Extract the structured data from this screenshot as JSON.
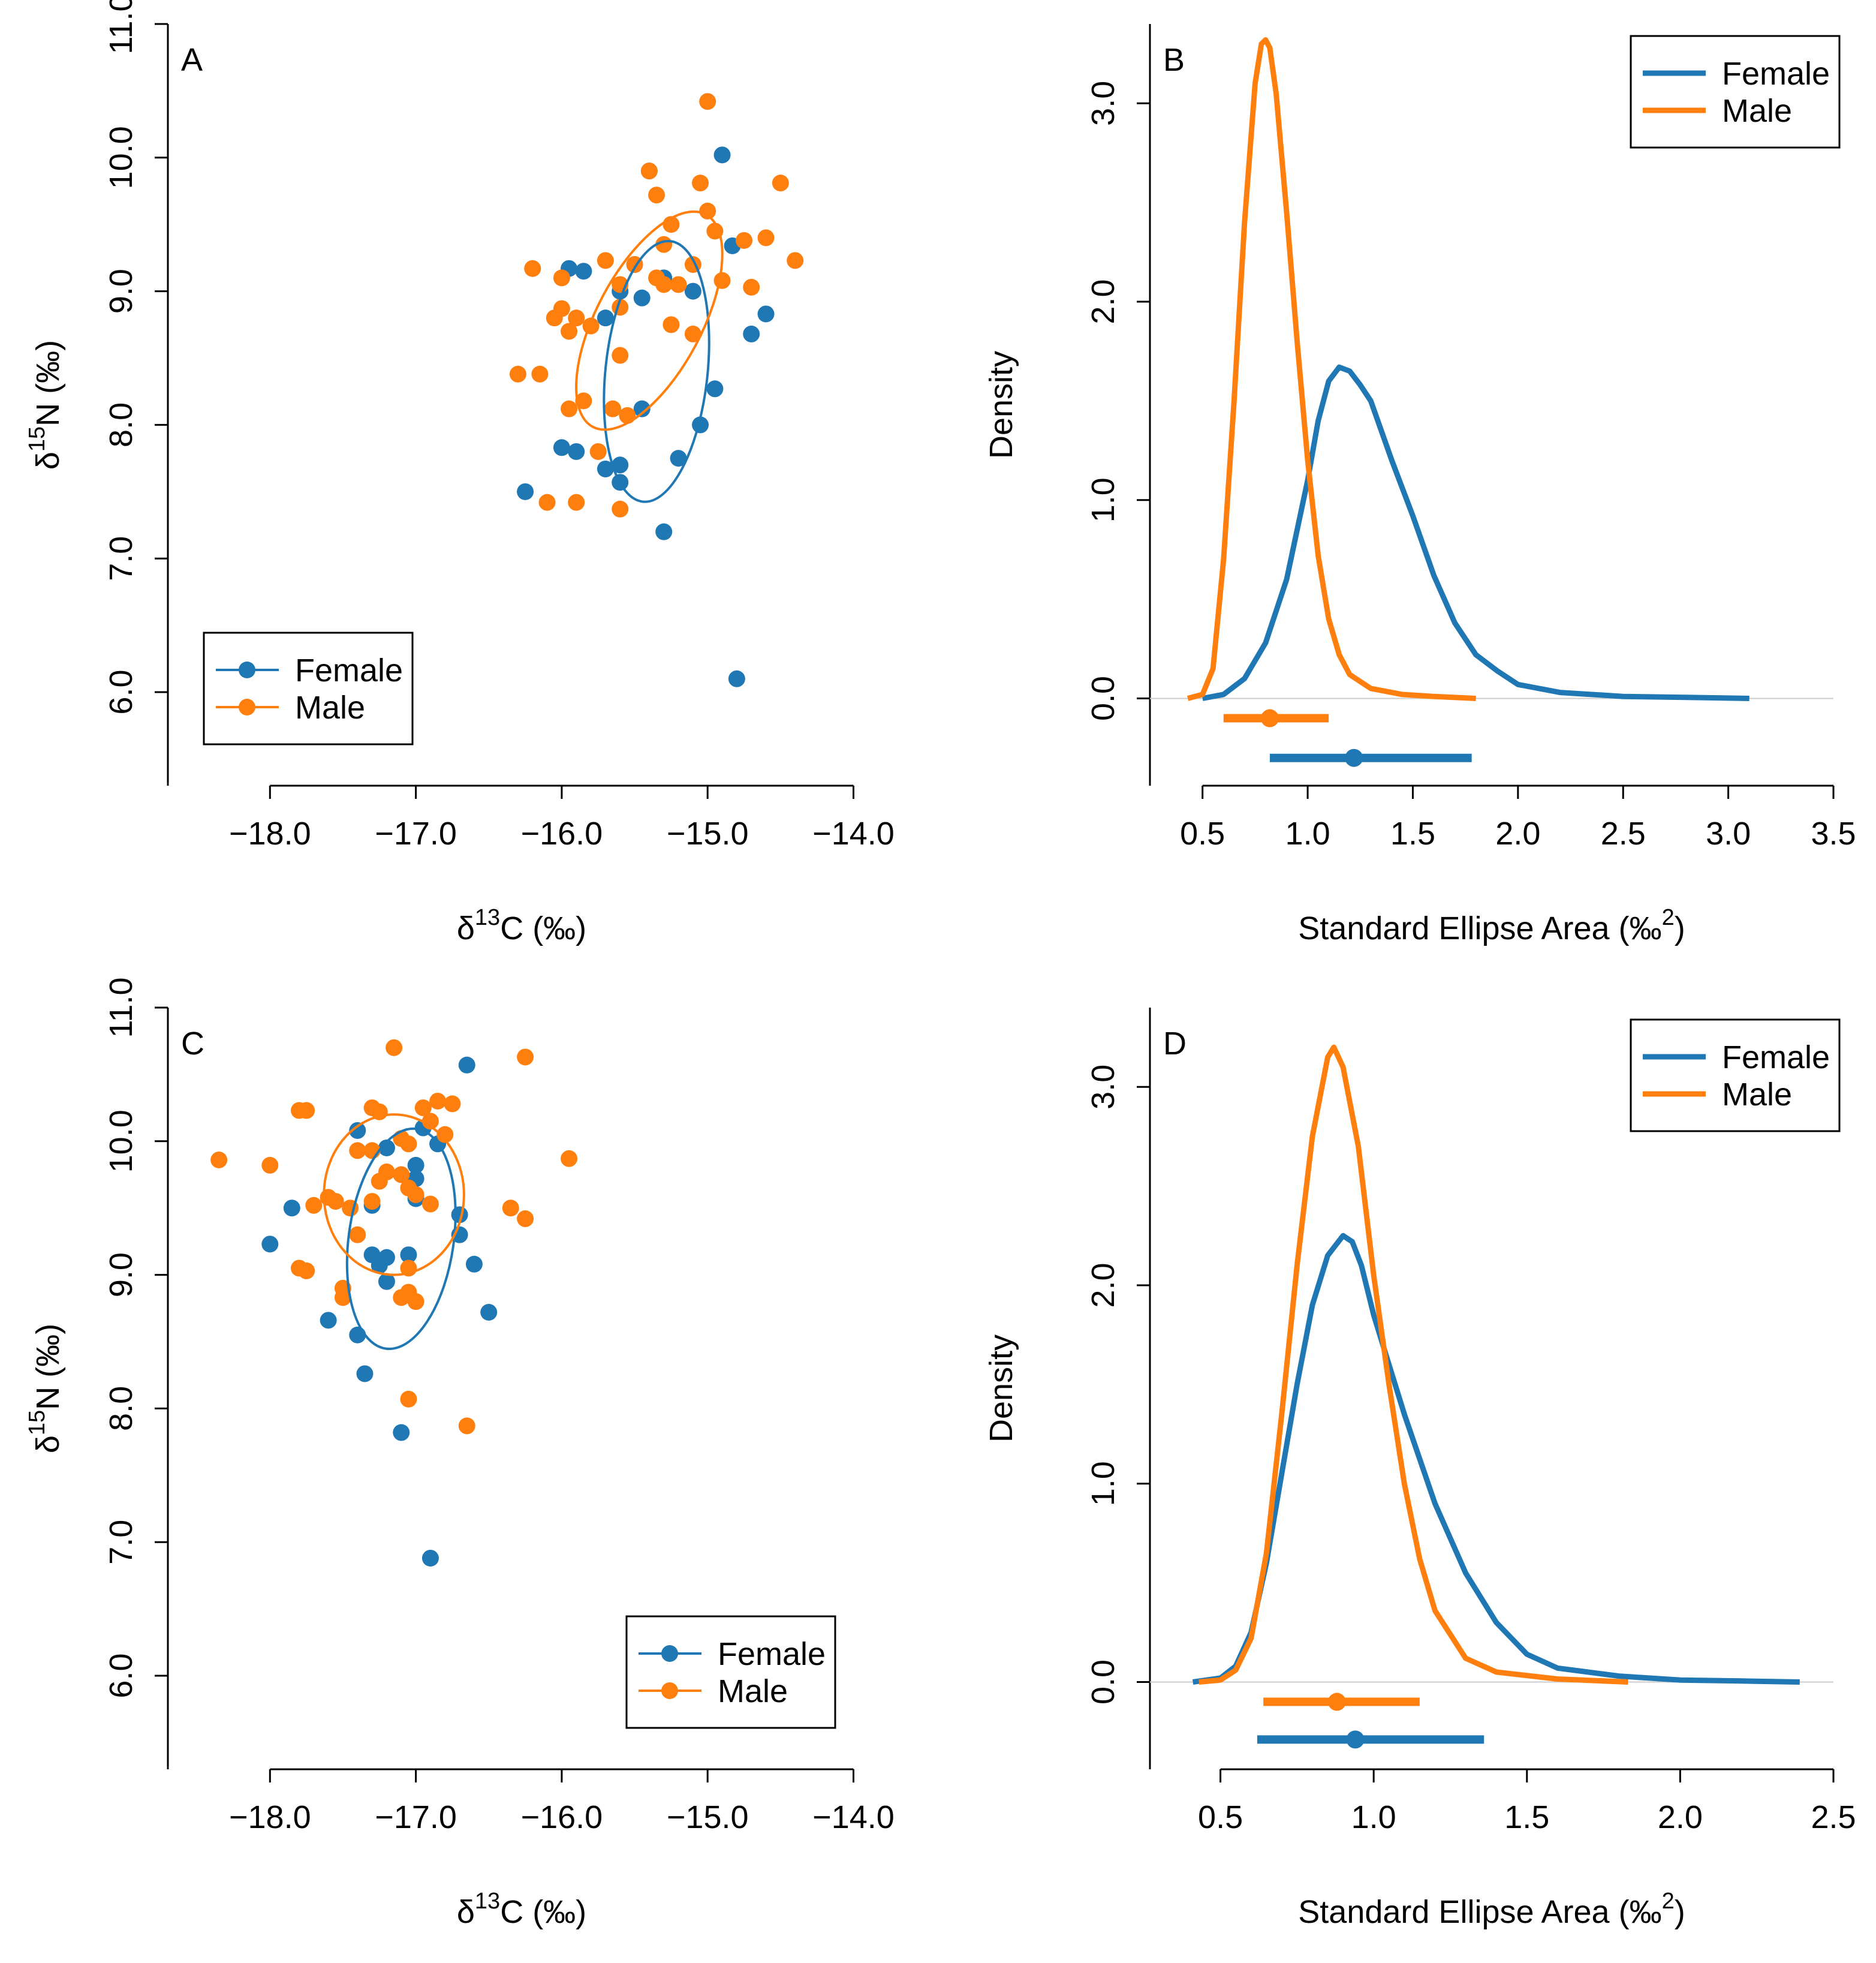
{
  "colors": {
    "female": "#1f77b4",
    "male": "#ff7f0e",
    "axis": "#000000",
    "zero_line": "#cccccc"
  },
  "chart_data": [
    {
      "panel": "A",
      "type": "scatter",
      "xlabel": "δ13C (‰)",
      "ylabel": "δ15N (‰)",
      "xlim": [
        -18.7,
        -13.85
      ],
      "ylim": [
        5.3,
        11.0
      ],
      "xticks": [
        -18.0,
        -17.0,
        -16.0,
        -15.0,
        -14.0
      ],
      "xtick_labels": [
        "−18.0",
        "−17.0",
        "−16.0",
        "−15.0",
        "−14.0"
      ],
      "yticks": [
        6.0,
        7.0,
        8.0,
        9.0,
        10.0,
        11.0
      ],
      "ytick_labels": [
        "6.0",
        "7.0",
        "8.0",
        "9.0",
        "10.0",
        "11.0"
      ],
      "legend": {
        "position": "bottom-left",
        "entries": [
          "Female",
          "Male"
        ]
      },
      "series": [
        {
          "name": "Female",
          "color": "#1f77b4",
          "points": [
            [
              -15.4,
              9.9
            ],
            [
              -14.9,
              10.02
            ],
            [
              -14.83,
              9.34
            ],
            [
              -15.95,
              9.17
            ],
            [
              -15.85,
              9.15
            ],
            [
              -15.5,
              9.2
            ],
            [
              -15.3,
              9.1
            ],
            [
              -15.1,
              9.0
            ],
            [
              -15.6,
              9.0
            ],
            [
              -15.7,
              8.8
            ],
            [
              -15.45,
              8.95
            ],
            [
              -14.6,
              8.83
            ],
            [
              -14.7,
              8.68
            ],
            [
              -14.95,
              8.27
            ],
            [
              -15.45,
              8.12
            ],
            [
              -15.05,
              8.0
            ],
            [
              -16.0,
              7.83
            ],
            [
              -15.9,
              7.8
            ],
            [
              -15.6,
              7.7
            ],
            [
              -15.7,
              7.67
            ],
            [
              -15.2,
              7.75
            ],
            [
              -15.6,
              7.57
            ],
            [
              -16.25,
              7.5
            ],
            [
              -15.3,
              7.2
            ],
            [
              -14.8,
              6.1
            ]
          ]
        },
        {
          "name": "Male",
          "color": "#ff7f0e",
          "points": [
            [
              -15.0,
              10.42
            ],
            [
              -15.4,
              9.9
            ],
            [
              -15.35,
              9.72
            ],
            [
              -15.05,
              9.81
            ],
            [
              -14.5,
              9.81
            ],
            [
              -15.0,
              9.6
            ],
            [
              -14.95,
              9.45
            ],
            [
              -15.25,
              9.5
            ],
            [
              -14.75,
              9.38
            ],
            [
              -14.6,
              9.4
            ],
            [
              -14.4,
              9.23
            ],
            [
              -15.3,
              9.35
            ],
            [
              -15.7,
              9.23
            ],
            [
              -16.2,
              9.17
            ],
            [
              -16.0,
              9.1
            ],
            [
              -15.5,
              9.2
            ],
            [
              -15.1,
              9.2
            ],
            [
              -14.9,
              9.08
            ],
            [
              -15.2,
              9.05
            ],
            [
              -15.35,
              9.1
            ],
            [
              -15.6,
              9.05
            ],
            [
              -15.3,
              9.05
            ],
            [
              -14.7,
              9.03
            ],
            [
              -16.0,
              8.87
            ],
            [
              -15.9,
              8.8
            ],
            [
              -16.05,
              8.8
            ],
            [
              -15.6,
              8.88
            ],
            [
              -15.25,
              8.75
            ],
            [
              -15.8,
              8.74
            ],
            [
              -15.95,
              8.7
            ],
            [
              -15.1,
              8.68
            ],
            [
              -15.6,
              8.52
            ],
            [
              -16.3,
              8.38
            ],
            [
              -16.15,
              8.38
            ],
            [
              -15.85,
              8.18
            ],
            [
              -15.95,
              8.12
            ],
            [
              -15.65,
              8.12
            ],
            [
              -15.55,
              8.07
            ],
            [
              -15.75,
              7.8
            ],
            [
              -15.9,
              7.42
            ],
            [
              -16.1,
              7.42
            ],
            [
              -15.6,
              7.37
            ]
          ]
        }
      ],
      "ellipses": [
        {
          "name": "Female",
          "cx": -15.35,
          "cy": 8.4,
          "rx": 0.35,
          "ry": 0.98,
          "angle": 6,
          "color": "#1f77b4"
        },
        {
          "name": "Male",
          "cx": -15.4,
          "cy": 8.78,
          "rx": 0.36,
          "ry": 0.9,
          "angle": 28,
          "color": "#ff7f0e"
        }
      ]
    },
    {
      "panel": "B",
      "type": "line",
      "xlabel": "Standard Ellipse Area (‰2)",
      "ylabel": "Density",
      "xlim": [
        0.25,
        3.5
      ],
      "ylim": [
        -0.44,
        3.4
      ],
      "xticks": [
        0.5,
        1.0,
        1.5,
        2.0,
        2.5,
        3.0,
        3.5
      ],
      "xtick_labels": [
        "0.5",
        "1.0",
        "1.5",
        "2.0",
        "2.5",
        "3.0",
        "3.5"
      ],
      "yticks": [
        0.0,
        1.0,
        2.0,
        3.0
      ],
      "ytick_labels": [
        "0.0",
        "1.0",
        "2.0",
        "3.0"
      ],
      "legend": {
        "position": "top-right",
        "entries": [
          "Female",
          "Male"
        ]
      },
      "series": [
        {
          "name": "Female",
          "color": "#1f77b4",
          "x": [
            0.5,
            0.6,
            0.7,
            0.8,
            0.9,
            1.0,
            1.05,
            1.1,
            1.15,
            1.2,
            1.25,
            1.3,
            1.4,
            1.5,
            1.6,
            1.7,
            1.8,
            1.9,
            2.0,
            2.2,
            2.5,
            2.8,
            3.1
          ],
          "y": [
            0.0,
            0.02,
            0.1,
            0.28,
            0.6,
            1.1,
            1.4,
            1.6,
            1.67,
            1.65,
            1.58,
            1.5,
            1.2,
            0.92,
            0.62,
            0.38,
            0.22,
            0.14,
            0.07,
            0.03,
            0.01,
            0.005,
            0.0
          ]
        },
        {
          "name": "Male",
          "color": "#ff7f0e",
          "x": [
            0.43,
            0.5,
            0.55,
            0.6,
            0.65,
            0.7,
            0.75,
            0.78,
            0.8,
            0.82,
            0.85,
            0.9,
            0.95,
            1.0,
            1.05,
            1.1,
            1.15,
            1.2,
            1.3,
            1.45,
            1.6,
            1.8
          ],
          "y": [
            0.0,
            0.02,
            0.15,
            0.7,
            1.5,
            2.4,
            3.1,
            3.3,
            3.32,
            3.28,
            3.05,
            2.45,
            1.8,
            1.2,
            0.72,
            0.4,
            0.22,
            0.12,
            0.05,
            0.02,
            0.01,
            0.0
          ]
        }
      ],
      "intervals": [
        {
          "name": "Male",
          "color": "#ff7f0e",
          "low": 0.6,
          "mid": 0.82,
          "high": 1.1,
          "y": -0.1
        },
        {
          "name": "Female",
          "color": "#1f77b4",
          "low": 0.82,
          "mid": 1.22,
          "high": 1.78,
          "y": -0.3
        }
      ]
    },
    {
      "panel": "C",
      "type": "scatter",
      "xlabel": "δ13C (‰)",
      "ylabel": "δ15N (‰)",
      "xlim": [
        -18.7,
        -13.85
      ],
      "ylim": [
        5.3,
        11.0
      ],
      "xticks": [
        -18.0,
        -17.0,
        -16.0,
        -15.0,
        -14.0
      ],
      "xtick_labels": [
        "−18.0",
        "−17.0",
        "−16.0",
        "−15.0",
        "−14.0"
      ],
      "yticks": [
        6.0,
        7.0,
        8.0,
        9.0,
        10.0,
        11.0
      ],
      "ytick_labels": [
        "6.0",
        "7.0",
        "8.0",
        "9.0",
        "10.0",
        "11.0"
      ],
      "legend": {
        "position": "bottom-right",
        "entries": [
          "Female",
          "Male"
        ]
      },
      "series": [
        {
          "name": "Female",
          "color": "#1f77b4",
          "points": [
            [
              -16.65,
              10.57
            ],
            [
              -17.4,
              10.08
            ],
            [
              -16.95,
              10.1
            ],
            [
              -16.85,
              9.98
            ],
            [
              -17.2,
              9.95
            ],
            [
              -17.0,
              9.82
            ],
            [
              -17.0,
              9.72
            ],
            [
              -17.0,
              9.57
            ],
            [
              -17.3,
              9.52
            ],
            [
              -17.85,
              9.5
            ],
            [
              -16.7,
              9.45
            ],
            [
              -16.7,
              9.3
            ],
            [
              -18.0,
              9.23
            ],
            [
              -17.3,
              9.15
            ],
            [
              -17.2,
              9.13
            ],
            [
              -17.05,
              9.15
            ],
            [
              -16.6,
              9.08
            ],
            [
              -17.25,
              9.07
            ],
            [
              -17.2,
              8.95
            ],
            [
              -16.5,
              8.72
            ],
            [
              -17.6,
              8.66
            ],
            [
              -17.4,
              8.55
            ],
            [
              -17.35,
              8.26
            ],
            [
              -17.1,
              7.82
            ],
            [
              -16.9,
              6.88
            ]
          ]
        },
        {
          "name": "Male",
          "color": "#ff7f0e",
          "points": [
            [
              -17.15,
              10.7
            ],
            [
              -16.25,
              10.63
            ],
            [
              -16.85,
              10.3
            ],
            [
              -16.75,
              10.28
            ],
            [
              -16.95,
              10.25
            ],
            [
              -17.8,
              10.23
            ],
            [
              -17.75,
              10.23
            ],
            [
              -17.3,
              10.25
            ],
            [
              -17.25,
              10.22
            ],
            [
              -16.9,
              10.15
            ],
            [
              -16.8,
              10.05
            ],
            [
              -17.1,
              10.02
            ],
            [
              -17.05,
              9.98
            ],
            [
              -17.4,
              9.93
            ],
            [
              -17.3,
              9.93
            ],
            [
              -18.35,
              9.86
            ],
            [
              -15.95,
              9.87
            ],
            [
              -18.0,
              9.82
            ],
            [
              -17.2,
              9.77
            ],
            [
              -17.1,
              9.75
            ],
            [
              -17.25,
              9.7
            ],
            [
              -17.05,
              9.65
            ],
            [
              -17.0,
              9.6
            ],
            [
              -17.6,
              9.58
            ],
            [
              -17.55,
              9.55
            ],
            [
              -17.7,
              9.52
            ],
            [
              -17.45,
              9.5
            ],
            [
              -17.3,
              9.55
            ],
            [
              -16.9,
              9.53
            ],
            [
              -16.35,
              9.5
            ],
            [
              -16.25,
              9.42
            ],
            [
              -17.4,
              9.3
            ],
            [
              -17.05,
              9.05
            ],
            [
              -17.8,
              9.05
            ],
            [
              -17.75,
              9.03
            ],
            [
              -17.5,
              8.9
            ],
            [
              -17.5,
              8.83
            ],
            [
              -17.05,
              8.87
            ],
            [
              -17.1,
              8.83
            ],
            [
              -17.0,
              8.8
            ],
            [
              -17.05,
              8.07
            ],
            [
              -16.65,
              7.87
            ]
          ]
        }
      ],
      "ellipses": [
        {
          "name": "Female",
          "cx": -17.1,
          "cy": 9.27,
          "rx": 0.36,
          "ry": 0.83,
          "angle": 8,
          "color": "#1f77b4"
        },
        {
          "name": "Male",
          "cx": -17.15,
          "cy": 9.6,
          "rx": 0.48,
          "ry": 0.6,
          "angle": 0,
          "color": "#ff7f0e"
        }
      ]
    },
    {
      "panel": "D",
      "type": "line",
      "xlabel": "Standard Ellipse Area (‰2)",
      "ylabel": "Density",
      "xlim": [
        0.27,
        2.5
      ],
      "ylim": [
        -0.44,
        3.4
      ],
      "xticks": [
        0.5,
        1.0,
        1.5,
        2.0,
        2.5
      ],
      "xtick_labels": [
        "0.5",
        "1.0",
        "1.5",
        "2.0",
        "2.5"
      ],
      "yticks": [
        0.0,
        1.0,
        2.0,
        3.0
      ],
      "ytick_labels": [
        "0.0",
        "1.0",
        "2.0",
        "3.0"
      ],
      "legend": {
        "position": "top-right",
        "entries": [
          "Female",
          "Male"
        ]
      },
      "series": [
        {
          "name": "Female",
          "color": "#1f77b4",
          "x": [
            0.41,
            0.5,
            0.55,
            0.6,
            0.65,
            0.7,
            0.75,
            0.8,
            0.85,
            0.9,
            0.93,
            0.96,
            1.0,
            1.05,
            1.1,
            1.2,
            1.3,
            1.4,
            1.5,
            1.6,
            1.8,
            2.0,
            2.2,
            2.39
          ],
          "y": [
            0.0,
            0.02,
            0.08,
            0.25,
            0.6,
            1.05,
            1.5,
            1.9,
            2.15,
            2.25,
            2.22,
            2.1,
            1.85,
            1.6,
            1.35,
            0.9,
            0.55,
            0.3,
            0.14,
            0.07,
            0.03,
            0.01,
            0.005,
            0.0
          ]
        },
        {
          "name": "Male",
          "color": "#ff7f0e",
          "x": [
            0.43,
            0.5,
            0.55,
            0.6,
            0.65,
            0.7,
            0.75,
            0.8,
            0.85,
            0.87,
            0.9,
            0.95,
            1.0,
            1.05,
            1.1,
            1.15,
            1.2,
            1.3,
            1.4,
            1.6,
            1.83
          ],
          "y": [
            0.0,
            0.01,
            0.06,
            0.22,
            0.65,
            1.35,
            2.1,
            2.75,
            3.15,
            3.2,
            3.1,
            2.7,
            2.05,
            1.5,
            1.0,
            0.62,
            0.36,
            0.12,
            0.05,
            0.015,
            0.0
          ]
        }
      ],
      "intervals": [
        {
          "name": "Male",
          "color": "#ff7f0e",
          "low": 0.64,
          "mid": 0.88,
          "high": 1.15,
          "y": -0.1
        },
        {
          "name": "Female",
          "color": "#1f77b4",
          "low": 0.62,
          "mid": 0.94,
          "high": 1.36,
          "y": -0.29
        }
      ]
    }
  ]
}
